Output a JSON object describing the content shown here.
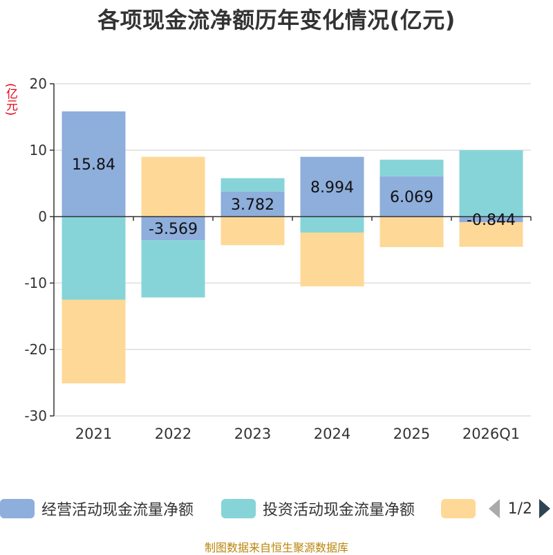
{
  "title": "各项现金流净额历年变化情况(亿元)",
  "unit_label": "(亿元)",
  "source": "制图数据来自恒生聚源数据库",
  "legend": {
    "items": [
      {
        "label": "经营活动现金流量净额",
        "color": "#8eaedc"
      },
      {
        "label": "投资活动现金流量净额",
        "color": "#86d4d8"
      },
      {
        "label": "",
        "color": "#fed897"
      }
    ],
    "page": "1/2"
  },
  "chart_data": {
    "type": "bar",
    "stacked": true,
    "title": "各项现金流净额历年变化情况(亿元)",
    "ylabel": "(亿元)",
    "ylim": [
      -30,
      20
    ],
    "yticks": [
      -30,
      -20,
      -10,
      0,
      10,
      20
    ],
    "grid": true,
    "legend_position": "bottom",
    "categories": [
      "2021",
      "2022",
      "2023",
      "2024",
      "2025",
      "2026Q1"
    ],
    "series": [
      {
        "name": "经营活动现金流量净额",
        "color": "#8eaedc",
        "values": [
          15.84,
          -3.569,
          3.782,
          8.994,
          6.069,
          -0.844
        ],
        "labels": [
          "15.84",
          "-3.569",
          "3.782",
          "8.994",
          "6.069",
          "-0.844"
        ]
      },
      {
        "name": "投资活动现金流量净额",
        "color": "#86d4d8",
        "values": [
          -12.5,
          -8.6,
          2.0,
          -2.4,
          2.5,
          10.0
        ]
      },
      {
        "name": "",
        "color": "#fed897",
        "values": [
          -12.6,
          9.0,
          -4.3,
          -8.1,
          -4.6,
          -3.7
        ]
      }
    ]
  }
}
